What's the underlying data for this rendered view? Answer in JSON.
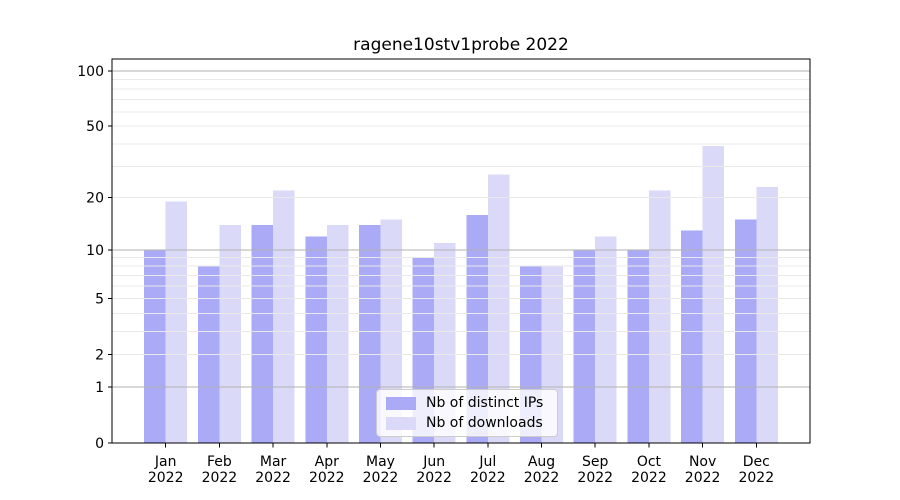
{
  "chart_data": {
    "type": "bar",
    "title": "ragene10stv1probe 2022",
    "categories": [
      "Jan",
      "Feb",
      "Mar",
      "Apr",
      "May",
      "Jun",
      "Jul",
      "Aug",
      "Sep",
      "Oct",
      "Nov",
      "Dec"
    ],
    "x_tick_line2": "2022",
    "series": [
      {
        "name": "Nb of distinct IPs",
        "color": "#aaaaf6",
        "values": [
          10,
          8,
          14,
          12,
          14,
          9,
          16,
          8,
          10,
          10,
          13,
          15
        ]
      },
      {
        "name": "Nb of downloads",
        "color": "#dadaf8",
        "values": [
          19,
          14,
          22,
          14,
          15,
          11,
          27,
          8,
          12,
          22,
          39,
          23
        ]
      }
    ],
    "y_axis": {
      "scale": "log1p",
      "tick_values": [
        100,
        50,
        20,
        10,
        5,
        2,
        1,
        0
      ],
      "tick_labels": [
        "100",
        "50",
        "20",
        "10",
        "5",
        "2",
        "1",
        "0"
      ],
      "major_gridlines": [
        1,
        10,
        100
      ],
      "minor_gridlines": [
        2,
        3,
        4,
        5,
        6,
        7,
        8,
        9,
        20,
        30,
        40,
        50,
        60,
        70,
        80,
        90
      ],
      "ylim": [
        0,
        117
      ]
    },
    "legend": {
      "position": "lower center"
    },
    "grid": true,
    "colors": {
      "major_grid": "#b2b2b2",
      "minor_grid": "#e9e9e9",
      "axis": "#000000",
      "text": "#000000",
      "legend_border": "#cccccc",
      "legend_bg": "rgba(255,255,255,0.8)"
    }
  }
}
